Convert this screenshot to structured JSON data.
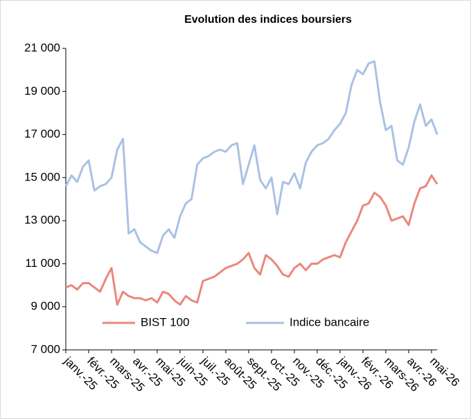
{
  "chart_data": {
    "type": "line",
    "title": "Evolution des indices boursiers",
    "categories": [
      "janv.-25",
      null,
      null,
      null,
      "févr.-25",
      null,
      null,
      null,
      "mars-25",
      null,
      null,
      null,
      "avr.-25",
      null,
      null,
      null,
      "mai-25",
      null,
      null,
      null,
      "juin-25",
      null,
      null,
      null,
      "juil.-25",
      null,
      null,
      null,
      "août-25",
      null,
      null,
      null,
      "sept.-25",
      null,
      null,
      null,
      "oct.-25",
      null,
      null,
      null,
      "nov.-25",
      null,
      null,
      null,
      "déc.-25",
      null,
      null,
      null,
      "janv.-26",
      null,
      null,
      null,
      "févr.-26",
      null,
      null,
      null,
      "mars-26",
      null,
      null,
      null,
      "avr.-26",
      null,
      null,
      null,
      "mai-26",
      null
    ],
    "series": [
      {
        "name": "BIST 100",
        "color": "#ea877c",
        "values": [
          9900,
          10000,
          9800,
          10100,
          10100,
          9900,
          9700,
          10300,
          10800,
          9100,
          9700,
          9500,
          9400,
          9400,
          9300,
          9400,
          9200,
          9700,
          9600,
          9300,
          9100,
          9500,
          9300,
          9200,
          10200,
          10300,
          10400,
          10600,
          10800,
          10900,
          11000,
          11200,
          11500,
          10800,
          10500,
          11400,
          11200,
          10900,
          10500,
          10400,
          10800,
          11000,
          10700,
          11000,
          11000,
          11200,
          11300,
          11400,
          11300,
          12000,
          12500,
          13000,
          13700,
          13800,
          14300,
          14100,
          13700,
          13000,
          13100,
          13200,
          12800,
          13800,
          14500,
          14600,
          15100,
          14700
        ]
      },
      {
        "name": "Indice bancaire",
        "color": "#a9c1e4",
        "values": [
          14600,
          15100,
          14800,
          15500,
          15800,
          14400,
          14600,
          14700,
          15000,
          16300,
          16800,
          12400,
          12600,
          12000,
          11800,
          11600,
          11500,
          12300,
          12600,
          12200,
          13200,
          13800,
          14000,
          15600,
          15900,
          16000,
          16200,
          16300,
          16200,
          16500,
          16600,
          14700,
          15600,
          16500,
          14900,
          14500,
          15000,
          13300,
          14800,
          14700,
          15200,
          14500,
          15700,
          16200,
          16500,
          16600,
          16800,
          17200,
          17500,
          18000,
          19300,
          20000,
          19800,
          20300,
          20400,
          18500,
          17200,
          17400,
          15800,
          15600,
          16400,
          17600,
          18400,
          17400,
          17700,
          17000
        ]
      }
    ],
    "ylim": [
      7000,
      21000
    ],
    "yticks": [
      {
        "value": 7000,
        "label": "7 000"
      },
      {
        "value": 9000,
        "label": "9 000"
      },
      {
        "value": 11000,
        "label": "11 000"
      },
      {
        "value": 13000,
        "label": "13 000"
      },
      {
        "value": 15000,
        "label": "15 000"
      },
      {
        "value": 17000,
        "label": "17 000"
      },
      {
        "value": 19000,
        "label": "19 000"
      },
      {
        "value": 21000,
        "label": "21 000"
      }
    ],
    "grid": false
  }
}
